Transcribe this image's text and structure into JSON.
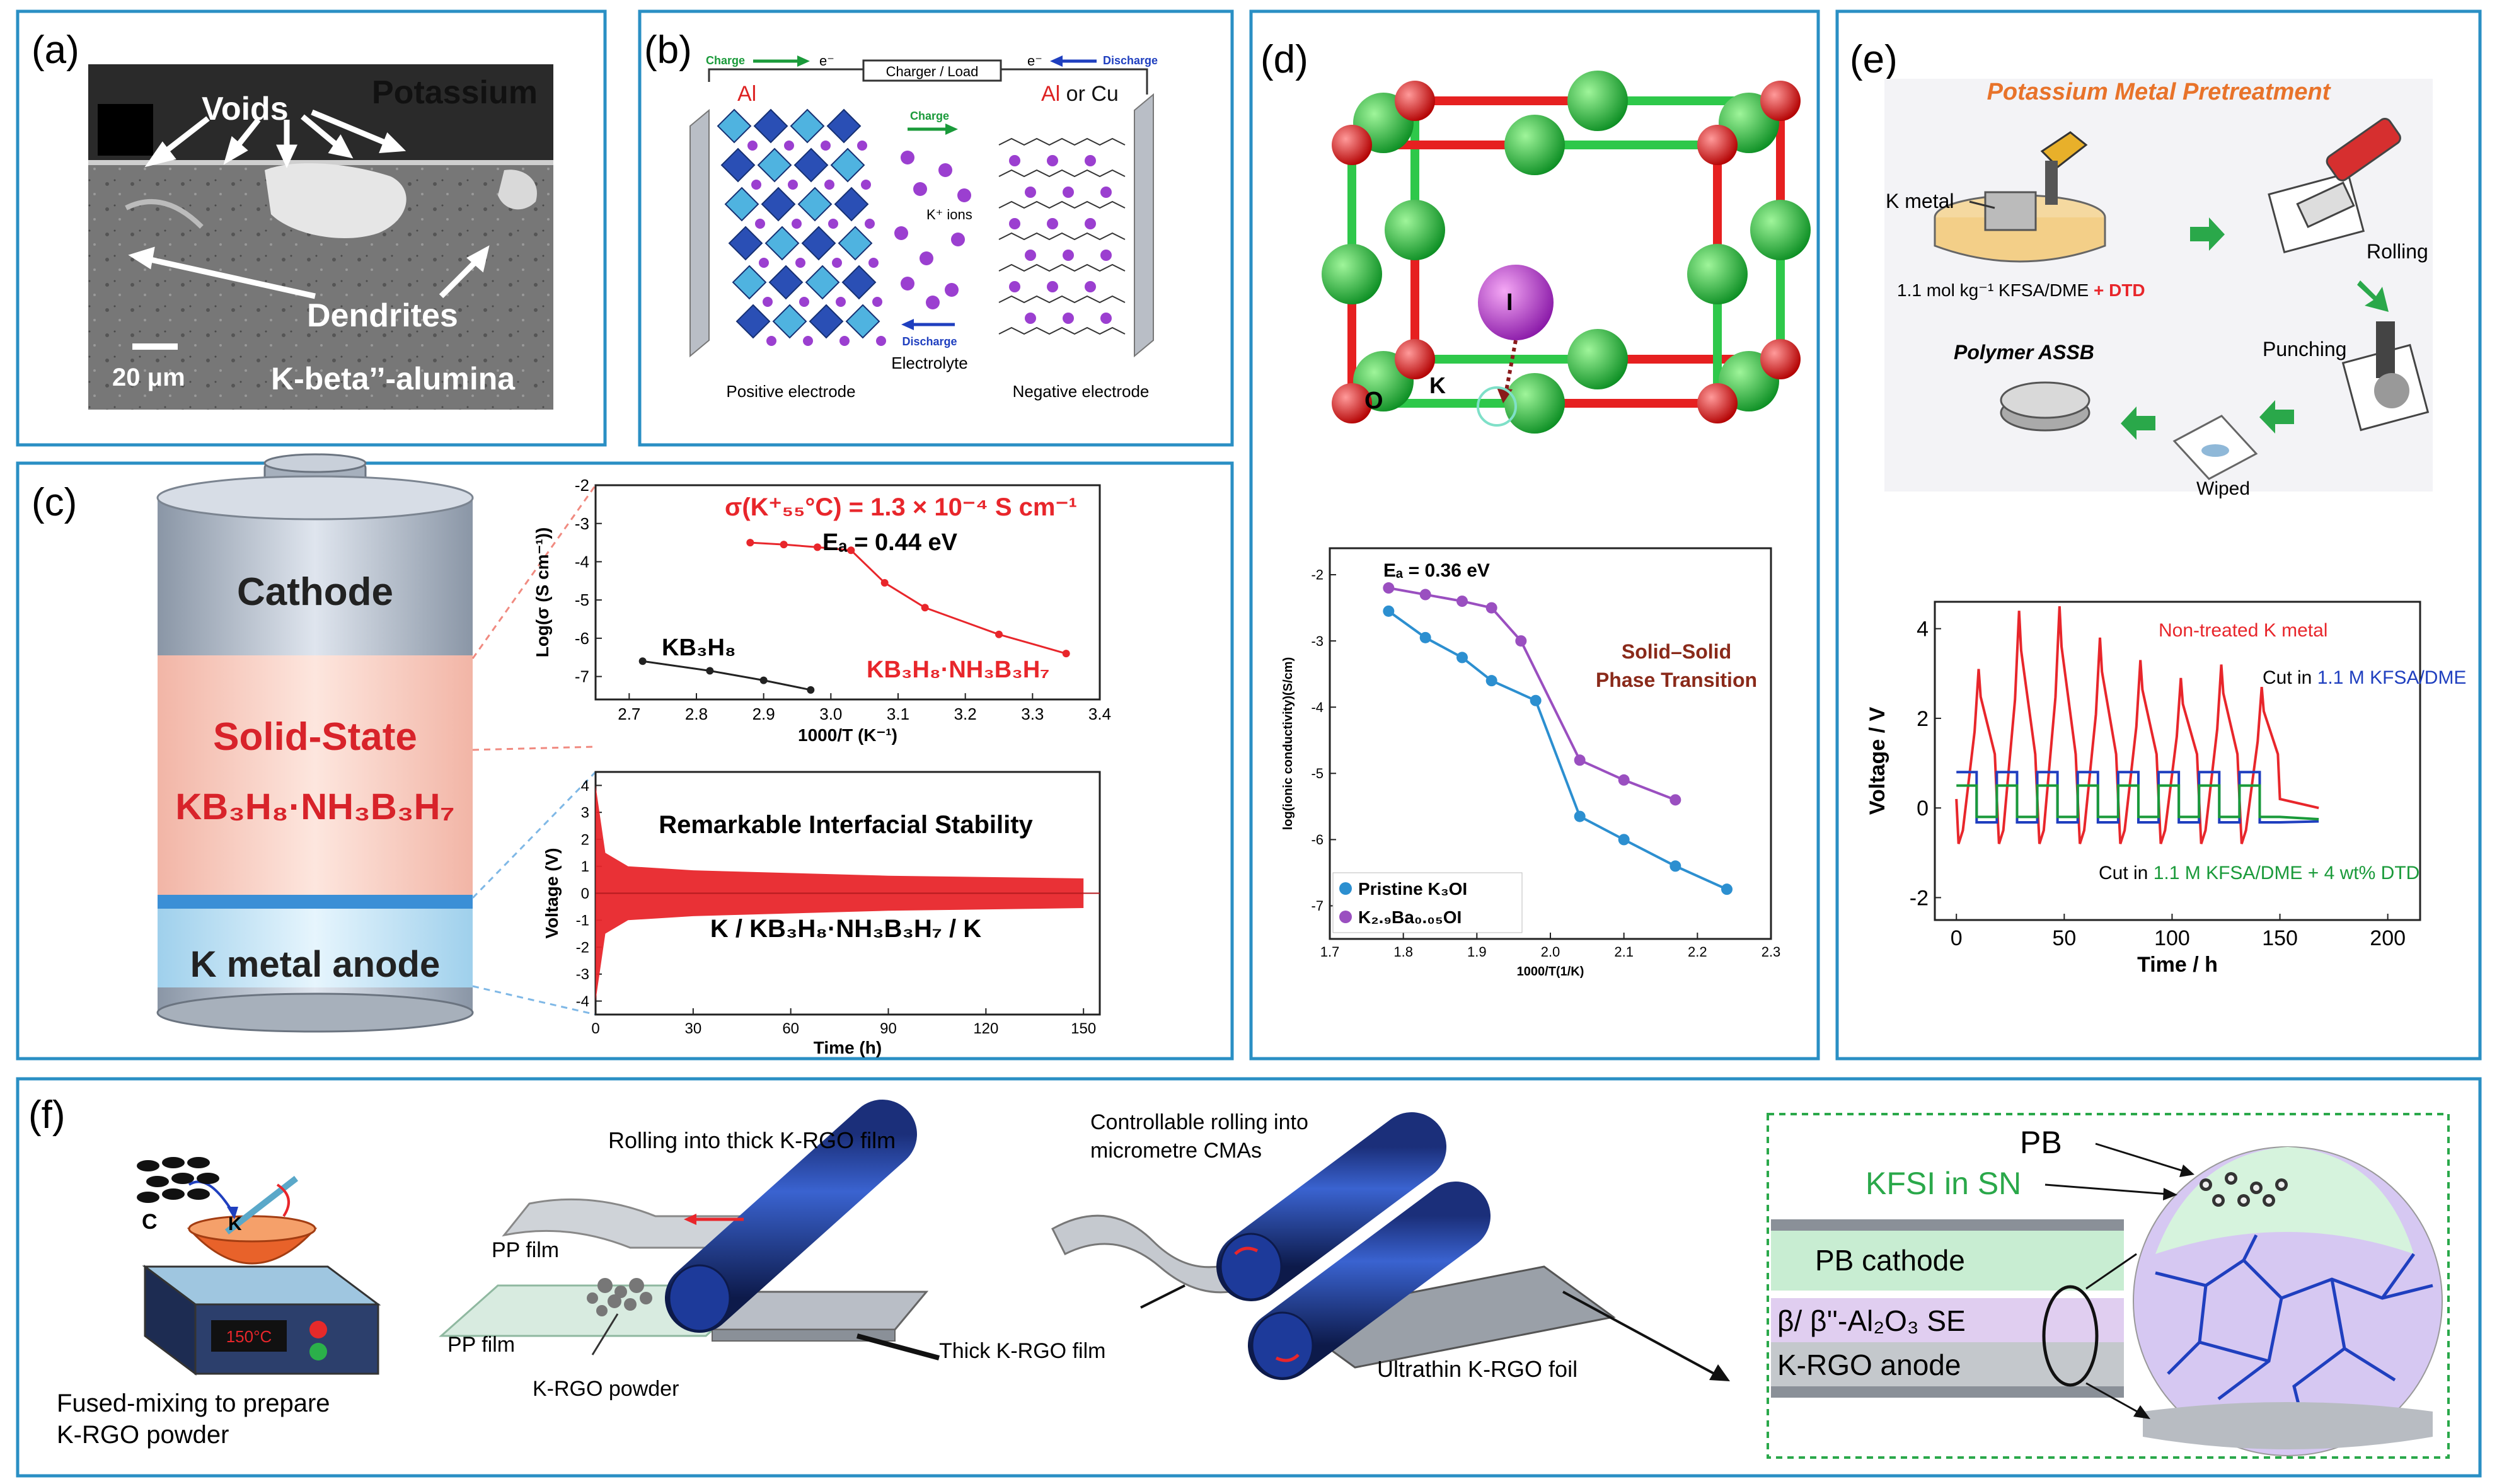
{
  "panel_labels": {
    "a": "(a)",
    "b": "(b)",
    "c": "(c)",
    "d": "(d)",
    "e": "(e)",
    "f": "(f)"
  },
  "panel_a": {
    "voids": "Voids",
    "potassium": "Potassium",
    "dendrites": "Dendrites",
    "scale": "20 μm",
    "electrolyte": "K-beta’’-alumina"
  },
  "panel_b": {
    "charge_top": "Charge",
    "electron_left": "e⁻",
    "charger": "Charger / Load",
    "electron_right": "e⁻",
    "discharge_top": "Discharge",
    "al": "Al",
    "al_cu_part1": "Al",
    "al_cu_part2": " or Cu",
    "charge_mid": "Charge",
    "k_ions": "K⁺ ions",
    "discharge_mid": "Discharge",
    "electrolyte": "Electrolyte",
    "positive": "Positive electrode",
    "negative": "Negative electrode"
  },
  "panel_c": {
    "cathode": "Cathode",
    "solid_state": "Solid-State",
    "kbh": "KB₃H₈·NH₃B₃H₇",
    "anode": "K metal anode",
    "sigma": "σ(K⁺₅₅°C) = 1.3 × 10⁻⁴ S cm⁻¹",
    "ea": "Eₐ = 0.44 eV",
    "kb3h8": "KB₃H₈",
    "kbh_series": "KB₃H₈·NH₃B₃H₇",
    "stability": "Remarkable Interfacial Stability",
    "cell": "K / KB₃H₈·NH₃B₃H₇ / K"
  },
  "panel_d": {
    "o": "O",
    "k": "K",
    "i": "I"
  },
  "panel_e": {
    "title": "Potassium Metal Pretreatment",
    "k_metal": "K metal",
    "rolling": "Rolling",
    "solution_part1": "1.1 mol kg⁻¹ KFSA/DME",
    "solution_part2": " + DTD",
    "punching": "Punching",
    "polymer": "Polymer ASSB",
    "wiped": "Wiped"
  },
  "panel_f": {
    "c": "C",
    "k": "K",
    "temp": "150°C",
    "fused_part1": "Fused-mixing to prepare",
    "fused_part2": "K-RGO powder",
    "rolling_thick": "Rolling into thick K-RGO film",
    "pp_film_1": "PP film",
    "pp_film_2": "PP film",
    "krgo_powder": "K-RGO powder",
    "thick_film": "Thick K-RGO film",
    "controllable_part1": "Controllable rolling into",
    "controllable_part2": "micrometre CMAs",
    "ultrathin": "Ultrathin K-RGO foil",
    "pb": "PB",
    "kfsi": "KFSI in SN",
    "pb_cathode": "PB cathode",
    "se": "β/ β''-Al₂O₃ SE",
    "krgo_anode": "K-RGO anode"
  },
  "chart_data": [
    {
      "type": "scatter",
      "panel": "c-top",
      "xlabel": "1000/T (K⁻¹)",
      "ylabel": "Log(σ (S cm⁻¹))",
      "xlim": [
        2.65,
        3.4
      ],
      "ylim": [
        -7.6,
        -2
      ],
      "xticks": [
        2.7,
        2.8,
        2.9,
        3.0,
        3.1,
        3.2,
        3.3,
        3.4
      ],
      "yticks": [
        -7,
        -6,
        -5,
        -4,
        -3,
        -2
      ],
      "series": [
        {
          "name": "KB₃H₈",
          "color": "#222222",
          "x": [
            2.72,
            2.82,
            2.9,
            2.97
          ],
          "y": [
            -6.6,
            -6.85,
            -7.1,
            -7.35
          ]
        },
        {
          "name": "KB₃H₈·NH₃B₃H₇",
          "color": "#e8262b",
          "x": [
            2.88,
            2.93,
            2.98,
            3.03,
            3.08,
            3.14,
            3.25,
            3.35
          ],
          "y": [
            -3.5,
            -3.55,
            -3.62,
            -3.7,
            -4.55,
            -5.2,
            -5.9,
            -6.4
          ]
        }
      ]
    },
    {
      "type": "line",
      "panel": "c-bottom",
      "xlabel": "Time (h)",
      "ylabel": "Voltage (V)",
      "xlim": [
        0,
        155
      ],
      "ylim": [
        -4.5,
        4.5
      ],
      "xticks": [
        0,
        30,
        60,
        90,
        120,
        150
      ],
      "yticks": [
        -4,
        -3,
        -2,
        -1,
        0,
        1,
        2,
        3,
        4
      ],
      "series": [
        {
          "name": "K / KB₃H₈·NH₃B₃H₇ / K",
          "color": "#e8262b",
          "envelope": [
            [
              0,
              4.0
            ],
            [
              3,
              1.5
            ],
            [
              10,
              1.0
            ],
            [
              30,
              0.85
            ],
            [
              90,
              0.65
            ],
            [
              150,
              0.55
            ]
          ]
        }
      ]
    },
    {
      "type": "scatter",
      "panel": "d",
      "xlabel": "1000/T(1/K)",
      "ylabel": "log(ionic conductivity)(S/cm)",
      "xlim": [
        1.7,
        2.3
      ],
      "ylim": [
        -7.5,
        -1.6
      ],
      "xticks": [
        1.7,
        1.8,
        1.9,
        2.0,
        2.1,
        2.2,
        2.3
      ],
      "yticks": [
        -7,
        -6,
        -5,
        -4,
        -3,
        -2
      ],
      "annotation": "Solid–Solid Phase Transition",
      "ea": "Eₐ = 0.36 eV",
      "series": [
        {
          "name": "Pristine K₃OI",
          "color": "#2c8fd0",
          "x": [
            1.78,
            1.83,
            1.88,
            1.92,
            1.98,
            2.04,
            2.1,
            2.17,
            2.24
          ],
          "y": [
            -2.55,
            -2.95,
            -3.25,
            -3.6,
            -3.9,
            -5.65,
            -6.0,
            -6.4,
            -6.75
          ]
        },
        {
          "name": "K₂.₉Ba₀.₀₅OI",
          "color": "#9a4fc0",
          "x": [
            1.78,
            1.83,
            1.88,
            1.92,
            1.96,
            2.04,
            2.1,
            2.17
          ],
          "y": [
            -2.2,
            -2.3,
            -2.4,
            -2.5,
            -3.0,
            -4.8,
            -5.1,
            -5.4
          ]
        }
      ]
    },
    {
      "type": "line",
      "panel": "e",
      "xlabel": "Time / h",
      "ylabel": "Voltage / V",
      "xlim": [
        -10,
        215
      ],
      "ylim": [
        -2.5,
        4.6
      ],
      "xticks": [
        0,
        50,
        100,
        150,
        200
      ],
      "yticks": [
        -2,
        0,
        2,
        4
      ],
      "series": [
        {
          "name": "Non-treated K metal",
          "color": "#e8262b",
          "peaks": [
            3.1,
            4.4,
            4.5,
            3.8,
            3.3,
            2.9,
            3.2,
            2.7
          ]
        },
        {
          "name": "Cut in 1.1 M KFSA/DME",
          "color": "#1f3fbf",
          "amplitude": 0.8
        },
        {
          "name": "Cut in 1.1 M KFSA/DME + 4 wt% DTD",
          "color": "#1a9a3a",
          "amplitude": 0.5
        }
      ],
      "legend": {
        "non_treated": "Non-treated K metal",
        "cut1_part1": "Cut in ",
        "cut1_part2": "1.1 M KFSA/DME",
        "cut2_part1": "Cut in ",
        "cut2_part2": "1.1 M KFSA/DME + 4 wt% DTD"
      }
    }
  ]
}
